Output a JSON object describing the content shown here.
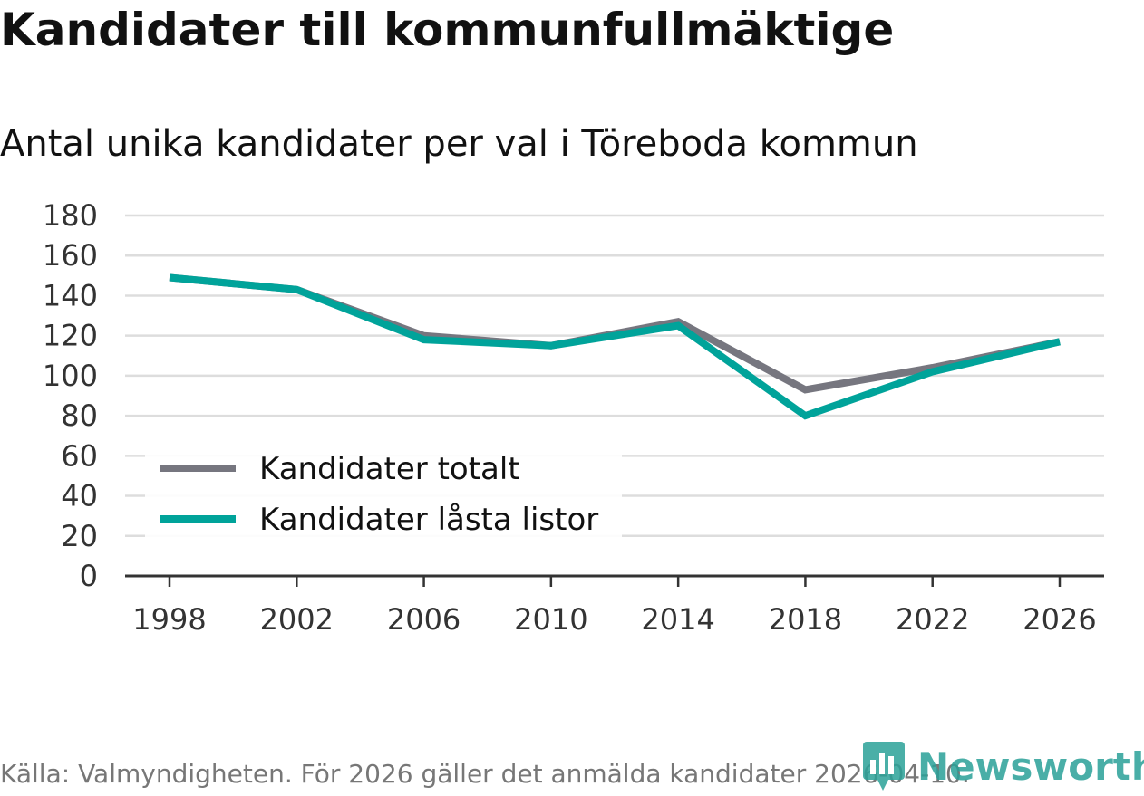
{
  "header": {
    "title": "Kandidater till kommunfullmäktige",
    "subtitle": "Antal unika kandidater per val i Töreboda kommun"
  },
  "footer": {
    "source": "Källa: Valmyndigheten. För 2026 gäller det anmälda kandidater 2026-04-10.",
    "brand": "Newsworthy"
  },
  "colors": {
    "total": "#76767f",
    "locked": "#00a39a",
    "grid": "#dddddd",
    "axis": "#333333"
  },
  "chart_data": {
    "type": "line",
    "title": "Antal unika kandidater per val i Töreboda kommun",
    "xlabel": "",
    "ylabel": "",
    "categories": [
      "1998",
      "2002",
      "2006",
      "2010",
      "2014",
      "2018",
      "2022",
      "2026"
    ],
    "x_ticks": [
      "1998",
      "2002",
      "2006",
      "2010",
      "2014",
      "2018",
      "2022",
      "2026"
    ],
    "y_ticks": [
      "0",
      "20",
      "40",
      "60",
      "80",
      "100",
      "120",
      "140",
      "160",
      "180"
    ],
    "ylim": [
      0,
      180
    ],
    "grid": true,
    "legend_position": "bottom-left",
    "series": [
      {
        "name": "Kandidater totalt",
        "color_key": "total",
        "values": [
          149,
          143,
          120,
          115,
          127,
          93,
          104,
          117
        ]
      },
      {
        "name": "Kandidater låsta listor",
        "color_key": "locked",
        "values": [
          149,
          143,
          118,
          115,
          125,
          80,
          102,
          117
        ]
      }
    ]
  }
}
